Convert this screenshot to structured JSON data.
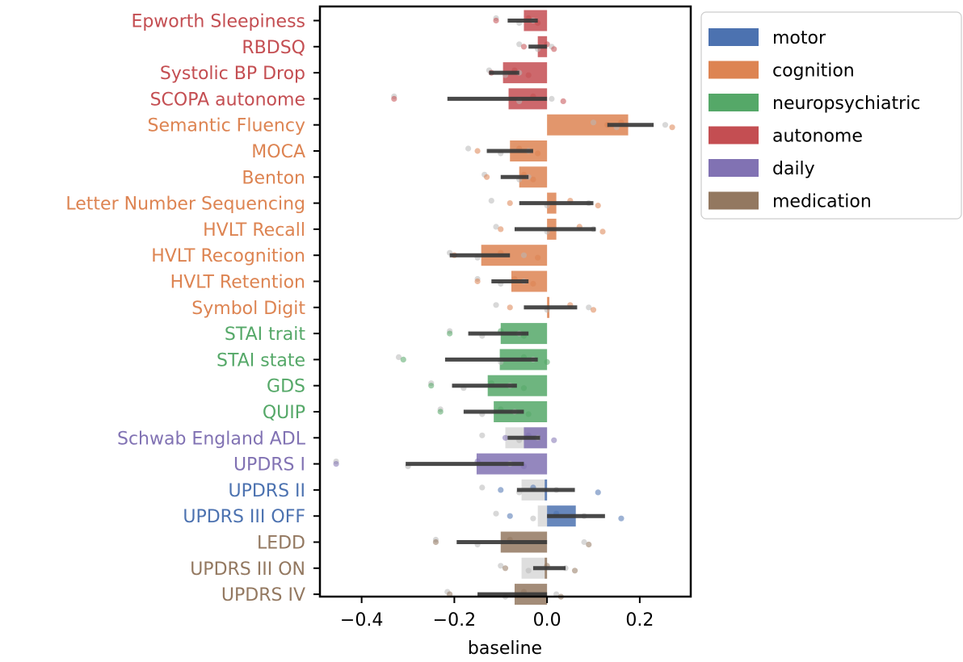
{
  "chart_data": {
    "type": "bar",
    "orientation": "horizontal",
    "xlabel": "baseline",
    "xlim": [
      -0.49,
      0.31
    ],
    "xticks": [
      -0.4,
      -0.2,
      0.0,
      0.2
    ],
    "xtick_labels": [
      "−0.4",
      "−0.2",
      "0.0",
      "0.2"
    ],
    "grid": false,
    "legend_position": "outside upper right",
    "legend": [
      {
        "name": "motor",
        "color": "#4C72B0"
      },
      {
        "name": "cognition",
        "color": "#DD8452"
      },
      {
        "name": "neuropsychiatric",
        "color": "#55A868"
      },
      {
        "name": "autonome",
        "color": "#C44E52"
      },
      {
        "name": "daily",
        "color": "#8172B3"
      },
      {
        "name": "medication",
        "color": "#937860"
      }
    ],
    "colors": {
      "motor": "#4C72B0",
      "cognition": "#DD8452",
      "neuropsychiatric": "#55A868",
      "autonome": "#C44E52",
      "daily": "#8172B3",
      "medication": "#937860"
    },
    "items": [
      {
        "label": "Epworth Sleepiness",
        "group": "autonome",
        "value": -0.05,
        "ci": [
          -0.085,
          -0.02
        ],
        "grey": null,
        "points": [
          -0.11,
          -0.11,
          -0.06,
          -0.04,
          -0.03,
          -0.02
        ]
      },
      {
        "label": "RBDSQ",
        "group": "autonome",
        "value": -0.02,
        "ci": [
          -0.04,
          0.0
        ],
        "grey": null,
        "points": [
          -0.06,
          -0.05,
          -0.02,
          0.0,
          0.01,
          0.015
        ]
      },
      {
        "label": "Systolic BP Drop",
        "group": "autonome",
        "value": -0.095,
        "ci": [
          -0.125,
          -0.06
        ],
        "grey": null,
        "points": [
          -0.125,
          -0.12,
          -0.09,
          -0.07,
          -0.06,
          -0.04
        ]
      },
      {
        "label": "SCOPA autonome",
        "group": "autonome",
        "value": -0.083,
        "ci": [
          -0.215,
          0.0
        ],
        "grey": null,
        "points": [
          -0.33,
          -0.33,
          -0.06,
          -0.03,
          0.01,
          0.035
        ]
      },
      {
        "label": "Semantic Fluency",
        "group": "cognition",
        "value": 0.175,
        "ci": [
          0.13,
          0.23
        ],
        "grey": null,
        "points": [
          0.1,
          0.13,
          0.15,
          0.16,
          0.255,
          0.27
        ]
      },
      {
        "label": "MOCA",
        "group": "cognition",
        "value": -0.08,
        "ci": [
          -0.13,
          -0.03
        ],
        "grey": null,
        "points": [
          -0.17,
          -0.15,
          -0.1,
          -0.06,
          -0.04,
          -0.02
        ]
      },
      {
        "label": "Benton",
        "group": "cognition",
        "value": -0.06,
        "ci": [
          -0.1,
          -0.04
        ],
        "grey": null,
        "points": [
          -0.135,
          -0.13,
          -0.06,
          -0.05,
          -0.04,
          -0.03
        ]
      },
      {
        "label": "Letter Number Sequencing",
        "group": "cognition",
        "value": 0.02,
        "ci": [
          -0.06,
          0.1
        ],
        "grey": null,
        "points": [
          -0.12,
          -0.08,
          0.0,
          0.05,
          0.09,
          0.11
        ]
      },
      {
        "label": "HVLT Recall",
        "group": "cognition",
        "value": 0.02,
        "ci": [
          -0.07,
          0.105
        ],
        "grey": null,
        "points": [
          -0.11,
          -0.1,
          0.0,
          0.07,
          0.1,
          0.12
        ]
      },
      {
        "label": "HVLT Recognition",
        "group": "cognition",
        "value": -0.142,
        "ci": [
          -0.21,
          -0.08
        ],
        "grey": null,
        "points": [
          -0.21,
          -0.2,
          -0.15,
          -0.1,
          -0.05,
          -0.02
        ]
      },
      {
        "label": "HVLT Retention",
        "group": "cognition",
        "value": -0.077,
        "ci": [
          -0.12,
          -0.04
        ],
        "grey": null,
        "points": [
          -0.15,
          -0.15,
          -0.1,
          -0.07,
          -0.05,
          -0.03
        ]
      },
      {
        "label": "Symbol Digit",
        "group": "cognition",
        "value": 0.005,
        "ci": [
          -0.05,
          0.065
        ],
        "grey": null,
        "points": [
          -0.11,
          -0.08,
          0.0,
          0.05,
          0.09,
          0.1
        ]
      },
      {
        "label": "STAI trait",
        "group": "neuropsychiatric",
        "value": -0.1,
        "ci": [
          -0.17,
          -0.04
        ],
        "grey": null,
        "points": [
          -0.21,
          -0.21,
          -0.14,
          -0.1,
          -0.06,
          -0.05
        ]
      },
      {
        "label": "STAI state",
        "group": "neuropsychiatric",
        "value": -0.102,
        "ci": [
          -0.22,
          -0.02
        ],
        "grey": null,
        "points": [
          -0.32,
          -0.31,
          -0.1,
          -0.05,
          -0.03,
          0.0
        ]
      },
      {
        "label": "GDS",
        "group": "neuropsychiatric",
        "value": -0.128,
        "ci": [
          -0.205,
          -0.065
        ],
        "grey": null,
        "points": [
          -0.25,
          -0.25,
          -0.18,
          -0.12,
          -0.08,
          -0.05
        ]
      },
      {
        "label": "QUIP",
        "group": "neuropsychiatric",
        "value": -0.115,
        "ci": [
          -0.18,
          -0.05
        ],
        "grey": null,
        "points": [
          -0.23,
          -0.23,
          -0.14,
          -0.1,
          -0.07,
          -0.04
        ]
      },
      {
        "label": "Schwab England ADL",
        "group": "daily",
        "value": -0.05,
        "ci": [
          -0.085,
          -0.015
        ],
        "grey": -0.09,
        "points": [
          -0.14,
          -0.09,
          -0.06,
          -0.04,
          -0.02,
          0.015
        ]
      },
      {
        "label": "UPDRS I",
        "group": "daily",
        "value": -0.152,
        "ci": [
          -0.305,
          -0.05
        ],
        "grey": null,
        "points": [
          -0.455,
          -0.455,
          -0.3,
          -0.15,
          -0.08,
          -0.05
        ]
      },
      {
        "label": "UPDRS II",
        "group": "motor",
        "value": -0.005,
        "ci": [
          -0.065,
          0.06
        ],
        "grey": -0.055,
        "points": [
          -0.14,
          -0.1,
          -0.06,
          -0.03,
          0.02,
          0.11
        ]
      },
      {
        "label": "UPDRS III OFF",
        "group": "motor",
        "value": 0.062,
        "ci": [
          0.0,
          0.125
        ],
        "grey": -0.02,
        "points": [
          -0.11,
          -0.08,
          -0.03,
          0.02,
          0.08,
          0.16
        ]
      },
      {
        "label": "LEDD",
        "group": "medication",
        "value": -0.1,
        "ci": [
          -0.195,
          0.0
        ],
        "grey": null,
        "points": [
          -0.24,
          -0.24,
          -0.15,
          -0.08,
          0.08,
          0.09
        ]
      },
      {
        "label": "UPDRS III ON",
        "group": "medication",
        "value": -0.005,
        "ci": [
          -0.03,
          0.04
        ],
        "grey": -0.055,
        "points": [
          -0.1,
          -0.09,
          -0.04,
          0.0,
          0.04,
          0.06
        ]
      },
      {
        "label": "UPDRS IV",
        "group": "medication",
        "value": -0.07,
        "ci": [
          -0.15,
          0.0
        ],
        "grey": null,
        "points": [
          -0.215,
          -0.21,
          -0.09,
          -0.05,
          0.02,
          0.03
        ]
      }
    ]
  }
}
